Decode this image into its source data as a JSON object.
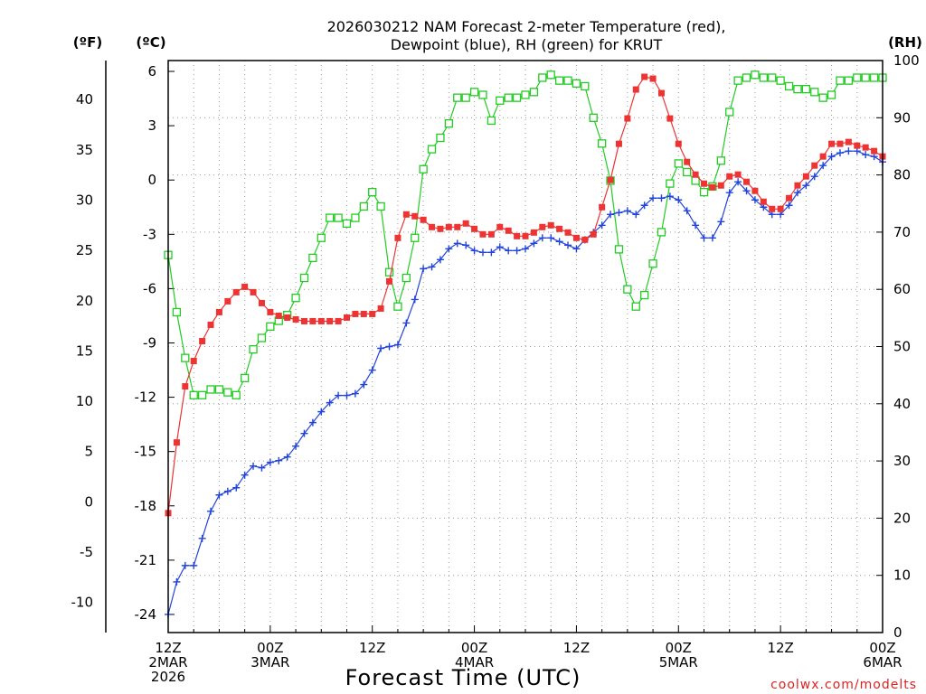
{
  "chart_data": {
    "type": "line",
    "title": [
      "2026030212 NAM Forecast 2-meter Temperature (red),",
      "Dewpoint (blue), RH (green) for KRUT"
    ],
    "xlabel": "Forecast Time (UTC)",
    "credit": "coolwx.com/modelts",
    "unit_labels": {
      "fahrenheit": "(ºF)",
      "celsius": "(ºC)",
      "rh": "(RH)"
    },
    "x_range_hours": [
      0,
      84
    ],
    "x_ticks": [
      {
        "hour": 0,
        "lines": [
          "12Z",
          "2MAR",
          "2026"
        ]
      },
      {
        "hour": 12,
        "lines": [
          "00Z",
          "3MAR"
        ]
      },
      {
        "hour": 24,
        "lines": [
          "12Z"
        ]
      },
      {
        "hour": 36,
        "lines": [
          "00Z",
          "4MAR"
        ]
      },
      {
        "hour": 48,
        "lines": [
          "12Z"
        ]
      },
      {
        "hour": 60,
        "lines": [
          "00Z",
          "5MAR"
        ]
      },
      {
        "hour": 72,
        "lines": [
          "12Z"
        ]
      },
      {
        "hour": 84,
        "lines": [
          "00Z",
          "6MAR"
        ]
      }
    ],
    "y_celsius": {
      "range": [
        -25,
        6.6
      ],
      "ticks": [
        6,
        3,
        0,
        -3,
        -6,
        -9,
        -12,
        -15,
        -18,
        -21,
        -24
      ]
    },
    "y_fahrenheit": {
      "ticks": [
        40,
        35,
        30,
        25,
        20,
        15,
        10,
        5,
        0,
        -5,
        -10
      ]
    },
    "y_rh": {
      "range": [
        0,
        100
      ],
      "ticks": [
        100,
        90,
        80,
        70,
        60,
        50,
        40,
        30,
        20,
        10,
        0
      ]
    },
    "colors": {
      "temperature": "#ee3333",
      "dewpoint": "#2244dd",
      "rh": "#22cc22"
    },
    "series": [
      {
        "name": "Temperature (°C)",
        "axis": "celsius",
        "marker": "filled-square",
        "values": [
          -18.4,
          -14.5,
          -11.4,
          -10.0,
          -8.9,
          -8.0,
          -7.3,
          -6.7,
          -6.2,
          -5.9,
          -6.2,
          -6.8,
          -7.3,
          -7.5,
          -7.6,
          -7.7,
          -7.8,
          -7.8,
          -7.8,
          -7.8,
          -7.8,
          -7.6,
          -7.4,
          -7.4,
          -7.4,
          -7.1,
          -5.6,
          -3.2,
          -1.9,
          -2.0,
          -2.2,
          -2.6,
          -2.7,
          -2.6,
          -2.6,
          -2.4,
          -2.7,
          -3.0,
          -3.0,
          -2.6,
          -2.8,
          -3.1,
          -3.1,
          -2.9,
          -2.6,
          -2.5,
          -2.7,
          -2.9,
          -3.2,
          -3.3,
          -3.0,
          -1.5,
          0.0,
          2.0,
          3.4,
          5.0,
          5.7,
          5.6,
          4.8,
          3.4,
          2.0,
          1.0,
          0.3,
          -0.2,
          -0.4,
          -0.3,
          0.2,
          0.3,
          -0.1,
          -0.6,
          -1.2,
          -1.6,
          -1.6,
          -1.0,
          -0.3,
          0.2,
          0.8,
          1.3,
          2.0,
          2.0,
          2.1,
          1.9,
          1.8,
          1.6,
          1.3
        ]
      },
      {
        "name": "Dewpoint (°C)",
        "axis": "celsius",
        "marker": "plus",
        "values": [
          -24.0,
          -22.2,
          -21.3,
          -21.3,
          -19.8,
          -18.3,
          -17.4,
          -17.2,
          -17.0,
          -16.3,
          -15.8,
          -15.9,
          -15.6,
          -15.5,
          -15.3,
          -14.7,
          -14.0,
          -13.4,
          -12.8,
          -12.3,
          -11.9,
          -11.9,
          -11.8,
          -11.3,
          -10.5,
          -9.3,
          -9.2,
          -9.1,
          -7.9,
          -6.6,
          -4.9,
          -4.8,
          -4.4,
          -3.8,
          -3.5,
          -3.6,
          -3.9,
          -4.0,
          -4.0,
          -3.7,
          -3.9,
          -3.9,
          -3.8,
          -3.5,
          -3.2,
          -3.2,
          -3.4,
          -3.6,
          -3.8,
          -3.3,
          -2.9,
          -2.5,
          -1.9,
          -1.8,
          -1.7,
          -1.9,
          -1.4,
          -1.0,
          -1.0,
          -0.9,
          -1.1,
          -1.7,
          -2.5,
          -3.2,
          -3.2,
          -2.3,
          -0.7,
          -0.1,
          -0.6,
          -1.1,
          -1.5,
          -1.9,
          -1.9,
          -1.4,
          -0.7,
          -0.3,
          0.2,
          0.8,
          1.3,
          1.5,
          1.6,
          1.6,
          1.4,
          1.3,
          1.0
        ]
      },
      {
        "name": "RH (%)",
        "axis": "rh",
        "marker": "open-square",
        "values": [
          66,
          56,
          48,
          41.5,
          41.5,
          42.5,
          42.5,
          42,
          41.5,
          44.5,
          49.5,
          51.5,
          53.5,
          54.5,
          55.5,
          58.5,
          62,
          65.5,
          69,
          72.5,
          72.5,
          71.5,
          72.5,
          74.5,
          77,
          74.5,
          63,
          57,
          62,
          69,
          81,
          84.5,
          86.5,
          89,
          93.5,
          93.5,
          94.5,
          94,
          89.5,
          93,
          93.5,
          93.5,
          94,
          94.5,
          97,
          97.5,
          96.5,
          96.5,
          96,
          95.5,
          90,
          85.5,
          79,
          67,
          60,
          57,
          59,
          64.5,
          70,
          78.5,
          82,
          80.5,
          79,
          77,
          78,
          82.5,
          91,
          96.5,
          97,
          97.5,
          97,
          97,
          96.5,
          95.5,
          95,
          95,
          94.5,
          93.5,
          94,
          96.5,
          96.5,
          97,
          97,
          97,
          97
        ]
      }
    ]
  }
}
